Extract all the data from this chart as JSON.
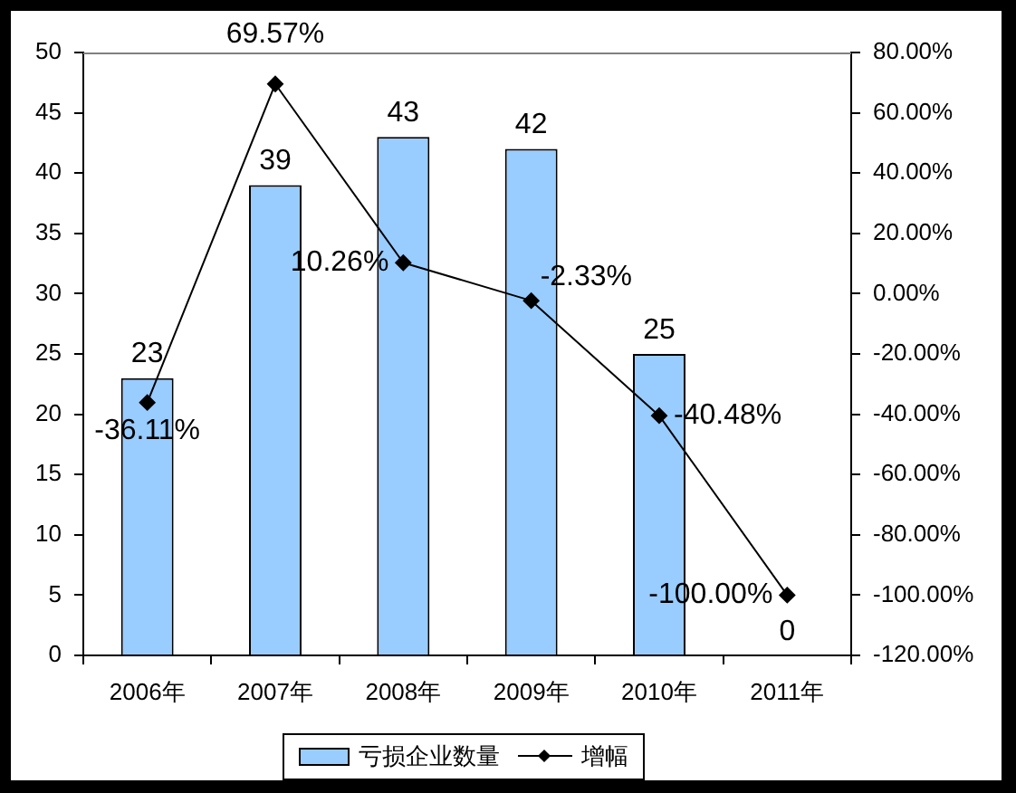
{
  "chart_data": {
    "type": "bar",
    "categories": [
      "2006年",
      "2007年",
      "2008年",
      "2009年",
      "2010年",
      "2011年"
    ],
    "series": [
      {
        "name": "亏损企业数量",
        "color": "#99ccff",
        "values": [
          23,
          39,
          43,
          42,
          25,
          0
        ],
        "value_labels": [
          "23",
          "39",
          "43",
          "42",
          "25",
          "0"
        ]
      },
      {
        "name": "增幅",
        "type": "line",
        "axis": "y2",
        "color": "#000000",
        "values": [
          -36.11,
          69.57,
          10.26,
          -2.33,
          -40.48,
          -100.0
        ],
        "value_labels": [
          "-36.11%",
          "69.57%",
          "10.26%",
          "-2.33%",
          "-40.48%",
          "-100.00%"
        ]
      }
    ],
    "ylim": [
      0,
      50
    ],
    "yticks": [
      0,
      5,
      10,
      15,
      20,
      25,
      30,
      35,
      40,
      45,
      50
    ],
    "y2lim": [
      -120,
      80
    ],
    "y2ticks": [
      {
        "value": -120,
        "label": "-120.00%"
      },
      {
        "value": -100,
        "label": "-100.00%"
      },
      {
        "value": -80,
        "label": "-80.00%"
      },
      {
        "value": -60,
        "label": "-60.00%"
      },
      {
        "value": -40,
        "label": "-40.00%"
      },
      {
        "value": -20,
        "label": "-20.00%"
      },
      {
        "value": 0,
        "label": "0.00%"
      },
      {
        "value": 20,
        "label": "20.00%"
      },
      {
        "value": 40,
        "label": "40.00%"
      },
      {
        "value": 60,
        "label": "60.00%"
      },
      {
        "value": 80,
        "label": "80.00%"
      }
    ],
    "grid": false,
    "legend": "bottom",
    "marker": "diamond",
    "line_style": "solid"
  }
}
